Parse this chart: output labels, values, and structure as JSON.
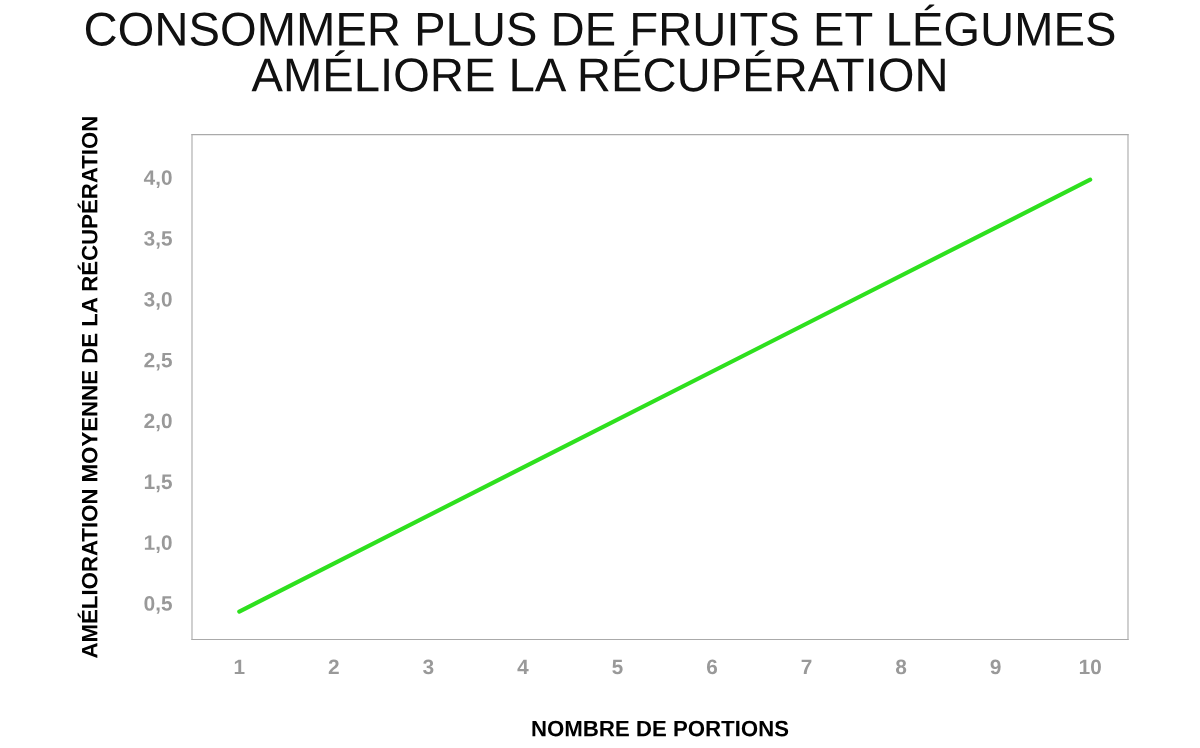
{
  "chart_data": {
    "type": "line",
    "title": "CONSOMMER PLUS DE FRUITS ET LÉGUMES\nAMÉLIORE LA RÉCUPÉRATION",
    "xlabel": "NOMBRE DE PORTIONS",
    "ylabel": "AMÉLIORATION MOYENNE DE LA RÉCUPÉRATION",
    "series": [
      {
        "color": "#2ee01e",
        "x": [
          1,
          10
        ],
        "values": [
          0.43,
          3.98
        ]
      }
    ],
    "xlim": [
      0.5,
      10.4
    ],
    "xticks": [
      1,
      2,
      3,
      4,
      5,
      6,
      7,
      8,
      9,
      10
    ],
    "ylim": [
      0.2,
      4.35
    ],
    "yticks": [
      {
        "value": 0.5,
        "label": "0,5"
      },
      {
        "value": 1.0,
        "label": "1,0"
      },
      {
        "value": 1.5,
        "label": "1,5"
      },
      {
        "value": 2.0,
        "label": "2,0"
      },
      {
        "value": 2.5,
        "label": "2,5"
      },
      {
        "value": 3.0,
        "label": "3,0"
      },
      {
        "value": 3.5,
        "label": "3,5"
      },
      {
        "value": 4.0,
        "label": "4,0"
      }
    ],
    "grid": false,
    "legend": false,
    "marker": "none",
    "line_style": "solid"
  }
}
